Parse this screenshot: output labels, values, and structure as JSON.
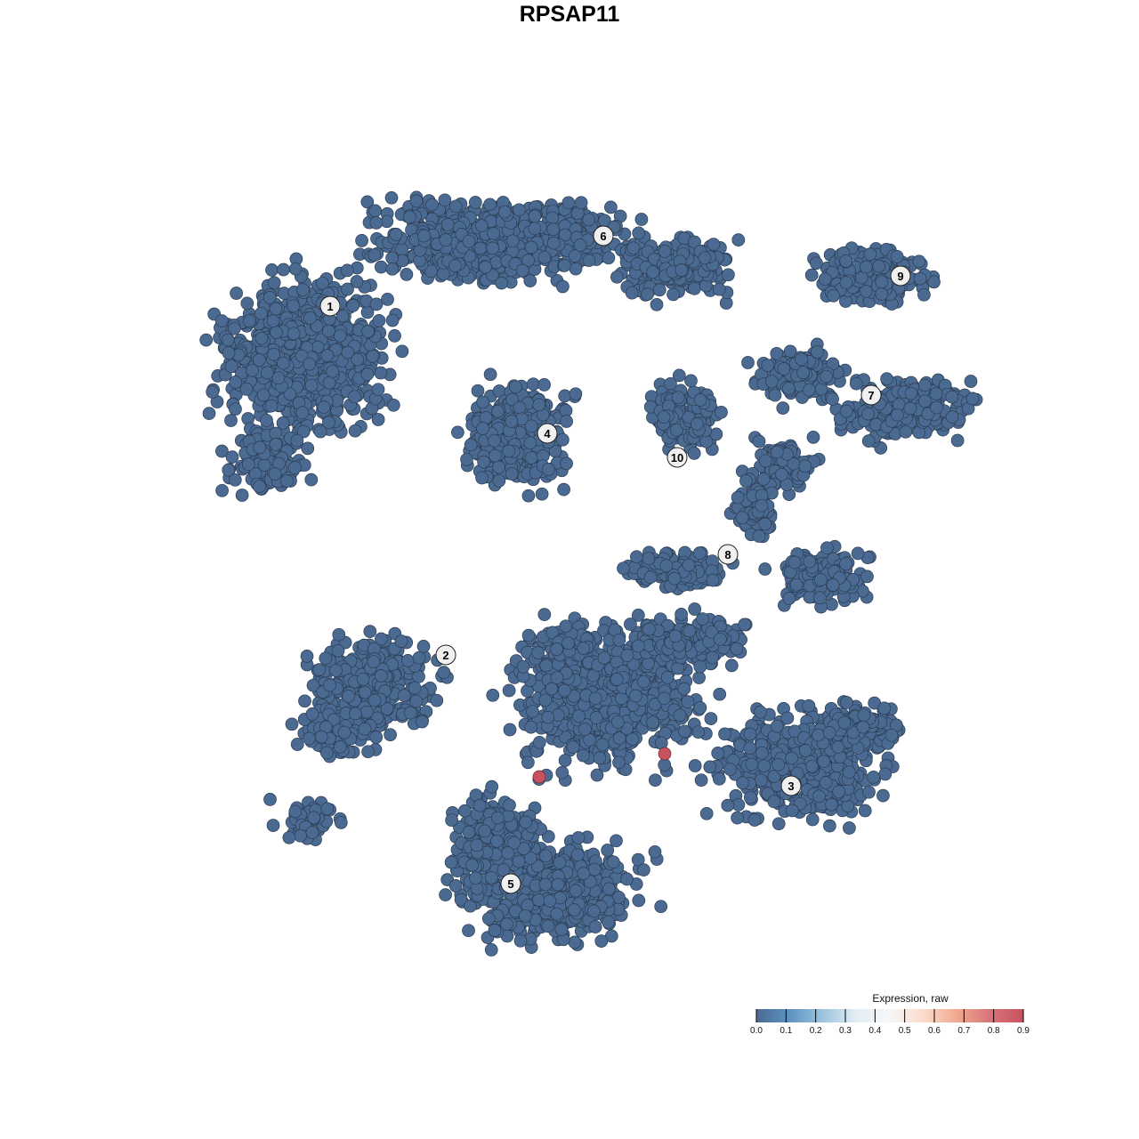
{
  "chart_data": {
    "type": "scatter",
    "title": "RPSAP11",
    "xlabel": "",
    "ylabel": "",
    "grid": false,
    "axes_visible": false,
    "cluster_labels": [
      "1",
      "2",
      "3",
      "4",
      "5",
      "6",
      "7",
      "8",
      "9",
      "10"
    ],
    "point_color_low": "#4a6a92",
    "point_color_high": "#c8525f",
    "highlighted_points_expression": [
      0.9,
      0.9
    ],
    "colorbar": {
      "title": "Expression, raw",
      "range": [
        0.0,
        0.9
      ],
      "ticks": [
        "0.0",
        "0.1",
        "0.2",
        "0.3",
        "0.4",
        "0.5",
        "0.6",
        "0.7",
        "0.8",
        "0.9"
      ],
      "colors": [
        "#4a6a92",
        "#5e93c2",
        "#9cc5de",
        "#e3eef5",
        "#f7f7f7",
        "#fbdccb",
        "#f2a98e",
        "#d9737a",
        "#c8525f"
      ],
      "placement": "bottom-right"
    }
  }
}
